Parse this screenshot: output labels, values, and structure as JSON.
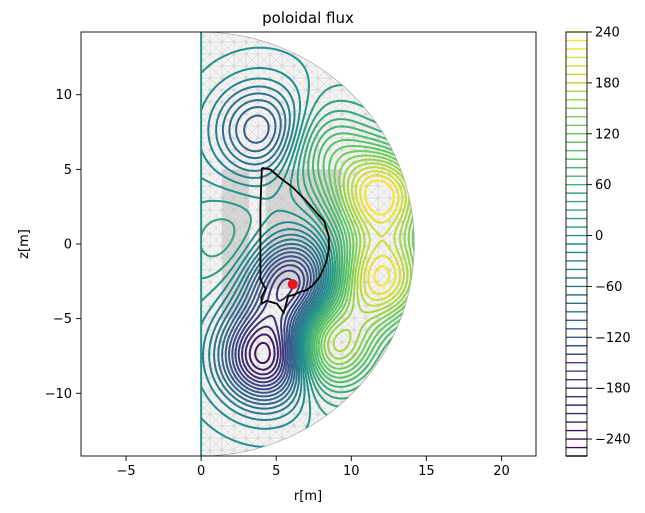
{
  "chart_data": {
    "type": "contour",
    "title": "poloidal flux",
    "xlabel": "r[m]",
    "ylabel": "z[m]",
    "xlim": [
      -8,
      22.3
    ],
    "ylim": [
      -14.2,
      14.2
    ],
    "xticks": [
      -5,
      0,
      5,
      10,
      15,
      20
    ],
    "yticks": [
      -10,
      -5,
      0,
      5,
      10
    ],
    "grid": false,
    "domain_outline": {
      "wall_r": 0,
      "outer_arc": {
        "center": [
          0,
          0
        ],
        "radius": 14.2
      }
    },
    "coil_sources": [
      {
        "r": 4,
        "z": 7.6,
        "strength": -130
      },
      {
        "r": 4.5,
        "z": -7.5,
        "strength": -260
      },
      {
        "r": 8.4,
        "z": -6.7,
        "strength": 220
      },
      {
        "r": 12,
        "z": 3.3,
        "strength": 240
      },
      {
        "r": 12,
        "z": -2.3,
        "strength": 230
      },
      {
        "r": 8.3,
        "z": 6.4,
        "strength": 90
      },
      {
        "r": 1.9,
        "z": 0,
        "strength": 40
      },
      {
        "r": 6.1,
        "z": -2.7,
        "strength": -200
      }
    ],
    "plasma_boundary": [
      [
        4.05,
        5.1
      ],
      [
        4.6,
        5.0
      ],
      [
        5.3,
        4.4
      ],
      [
        6.1,
        3.8
      ],
      [
        6.9,
        3.0
      ],
      [
        7.6,
        2.2
      ],
      [
        8.2,
        1.5
      ],
      [
        8.5,
        0.5
      ],
      [
        8.5,
        -0.4
      ],
      [
        8.3,
        -1.3
      ],
      [
        7.9,
        -2.2
      ],
      [
        7.4,
        -2.8
      ],
      [
        7.0,
        -3.1
      ],
      [
        6.6,
        -3.2
      ],
      [
        6.2,
        -3.4
      ],
      [
        5.8,
        -3.5
      ],
      [
        5.5,
        -4.6
      ],
      [
        5.05,
        -4.0
      ],
      [
        4.35,
        -3.8
      ],
      [
        4.05,
        -4.0
      ],
      [
        4.0,
        -3.6
      ],
      [
        4.3,
        -3.0
      ],
      [
        3.95,
        -2.4
      ],
      [
        3.95,
        0.0
      ],
      [
        3.95,
        2.5
      ],
      [
        4.0,
        4.0
      ],
      [
        4.05,
        5.1
      ]
    ],
    "magnetic_axis": {
      "r": 6.1,
      "z": -2.7
    },
    "colorbar": {
      "min": -260,
      "max": 240,
      "tick_values": [
        240,
        180,
        120,
        60,
        0,
        -60,
        -120,
        -180,
        -240
      ],
      "tick_labels": [
        "240",
        "180",
        "120",
        "60",
        "0",
        "−60",
        "−120",
        "−180",
        "−240"
      ],
      "colormap": [
        "#440154",
        "#3b528b",
        "#21918c",
        "#5ec962",
        "#fde725"
      ]
    }
  }
}
